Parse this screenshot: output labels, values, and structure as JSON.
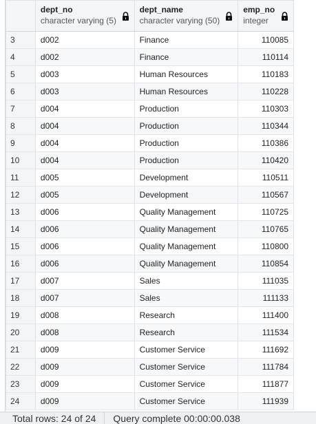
{
  "columns": [
    {
      "name": "",
      "type": ""
    },
    {
      "name": "dept_no",
      "type": "character varying (5)"
    },
    {
      "name": "dept_name",
      "type": "character varying (50)"
    },
    {
      "name": "emp_no",
      "type": "integer"
    }
  ],
  "rows": [
    {
      "n": "3",
      "dept_no": "d002",
      "dept_name": "Finance",
      "emp_no": "110085"
    },
    {
      "n": "4",
      "dept_no": "d002",
      "dept_name": "Finance",
      "emp_no": "110114"
    },
    {
      "n": "5",
      "dept_no": "d003",
      "dept_name": "Human Resources",
      "emp_no": "110183"
    },
    {
      "n": "6",
      "dept_no": "d003",
      "dept_name": "Human Resources",
      "emp_no": "110228"
    },
    {
      "n": "7",
      "dept_no": "d004",
      "dept_name": "Production",
      "emp_no": "110303"
    },
    {
      "n": "8",
      "dept_no": "d004",
      "dept_name": "Production",
      "emp_no": "110344"
    },
    {
      "n": "9",
      "dept_no": "d004",
      "dept_name": "Production",
      "emp_no": "110386"
    },
    {
      "n": "10",
      "dept_no": "d004",
      "dept_name": "Production",
      "emp_no": "110420"
    },
    {
      "n": "11",
      "dept_no": "d005",
      "dept_name": "Development",
      "emp_no": "110511"
    },
    {
      "n": "12",
      "dept_no": "d005",
      "dept_name": "Development",
      "emp_no": "110567"
    },
    {
      "n": "13",
      "dept_no": "d006",
      "dept_name": "Quality Management",
      "emp_no": "110725"
    },
    {
      "n": "14",
      "dept_no": "d006",
      "dept_name": "Quality Management",
      "emp_no": "110765"
    },
    {
      "n": "15",
      "dept_no": "d006",
      "dept_name": "Quality Management",
      "emp_no": "110800"
    },
    {
      "n": "16",
      "dept_no": "d006",
      "dept_name": "Quality Management",
      "emp_no": "110854"
    },
    {
      "n": "17",
      "dept_no": "d007",
      "dept_name": "Sales",
      "emp_no": "111035"
    },
    {
      "n": "18",
      "dept_no": "d007",
      "dept_name": "Sales",
      "emp_no": "111133"
    },
    {
      "n": "19",
      "dept_no": "d008",
      "dept_name": "Research",
      "emp_no": "111400"
    },
    {
      "n": "20",
      "dept_no": "d008",
      "dept_name": "Research",
      "emp_no": "111534"
    },
    {
      "n": "21",
      "dept_no": "d009",
      "dept_name": "Customer Service",
      "emp_no": "111692"
    },
    {
      "n": "22",
      "dept_no": "d009",
      "dept_name": "Customer Service",
      "emp_no": "111784"
    },
    {
      "n": "23",
      "dept_no": "d009",
      "dept_name": "Customer Service",
      "emp_no": "111877"
    },
    {
      "n": "24",
      "dept_no": "d009",
      "dept_name": "Customer Service",
      "emp_no": "111939"
    }
  ],
  "status": {
    "total_rows": "Total rows: 24 of 24",
    "query_status": "Query complete 00:00:00.038"
  },
  "icons": {
    "lock": "lock-icon"
  },
  "colors": {
    "header_bg": "#f3f5f7",
    "border": "#dee2e6"
  }
}
